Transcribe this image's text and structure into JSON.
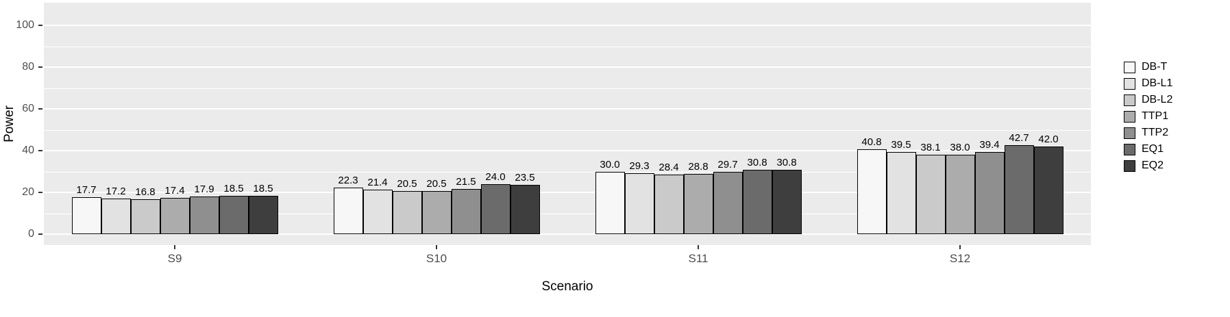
{
  "chart_data": {
    "type": "bar",
    "title": "",
    "xlabel": "Scenario",
    "ylabel": "Power",
    "ylim": [
      0,
      100
    ],
    "y_ticks": [
      0,
      20,
      40,
      60,
      80,
      100
    ],
    "y_minor_ticks": [
      10,
      30,
      50,
      70,
      90
    ],
    "categories": [
      "S9",
      "S10",
      "S11",
      "S12"
    ],
    "series": [
      {
        "name": "DB-T",
        "color": "#F7F7F7",
        "values": [
          17.7,
          22.3,
          30.0,
          40.8
        ]
      },
      {
        "name": "DB-L1",
        "color": "#E2E2E2",
        "values": [
          17.2,
          21.4,
          29.3,
          39.5
        ]
      },
      {
        "name": "DB-L2",
        "color": "#CACACA",
        "values": [
          16.8,
          20.5,
          28.4,
          38.1
        ]
      },
      {
        "name": "TTP1",
        "color": "#ACACAC",
        "values": [
          17.4,
          20.5,
          28.8,
          38.0
        ]
      },
      {
        "name": "TTP2",
        "color": "#8F8F8F",
        "values": [
          17.9,
          21.5,
          29.7,
          39.4
        ]
      },
      {
        "name": "EQ1",
        "color": "#6B6B6B",
        "values": [
          18.5,
          24.0,
          30.8,
          42.7
        ]
      },
      {
        "name": "EQ2",
        "color": "#3E3E3E",
        "values": [
          18.5,
          23.5,
          30.8,
          42.0
        ]
      }
    ],
    "legend_position": "right",
    "grid": true,
    "panel_background": "#EBEBEB",
    "gridline_color": "#FFFFFF",
    "bar_border_color": "#000000",
    "axis_text_color": "#4D4D4D",
    "value_label_decimals": 1
  }
}
